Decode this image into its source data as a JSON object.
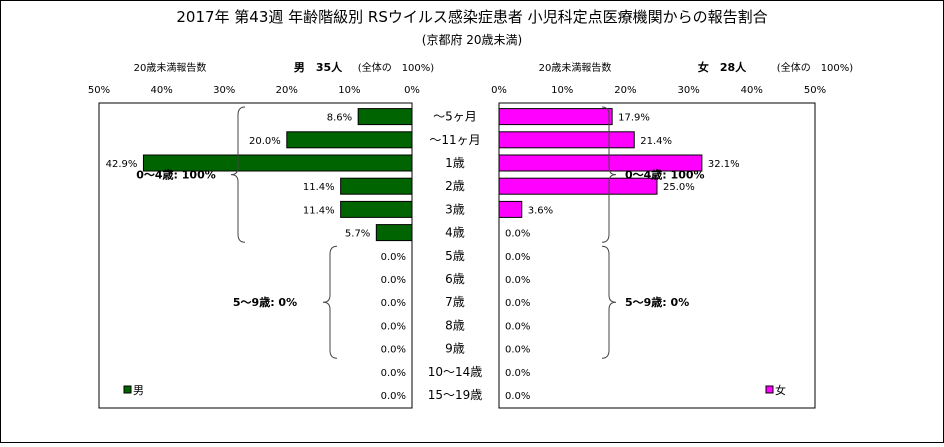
{
  "chart_data": {
    "type": "bar",
    "orientation": "horizontal",
    "layout": "population-pyramid",
    "title": "2017年 第43週 年齢階級別 RSウイルス感染症患者 小児科定点医療機関からの報告割合",
    "subtitle": "(京都府 20歳未満)",
    "categories": [
      "～5ヶ月",
      "～11ヶ月",
      "1歳",
      "2歳",
      "3歳",
      "4歳",
      "5歳",
      "6歳",
      "7歳",
      "8歳",
      "9歳",
      "10～14歳",
      "15～19歳"
    ],
    "xlim": [
      0,
      50
    ],
    "ticks": [
      "0%",
      "10%",
      "20%",
      "30%",
      "40%",
      "50%"
    ],
    "grid": false,
    "series": [
      {
        "name": "男",
        "color": "#006400",
        "side": "left",
        "values": [
          8.6,
          20.0,
          42.9,
          11.4,
          11.4,
          5.7,
          0,
          0,
          0,
          0,
          0,
          0,
          0
        ],
        "labels": [
          "8.6%",
          "20.0%",
          "42.9%",
          "11.4%",
          "11.4%",
          "5.7%",
          "0.0%",
          "0.0%",
          "0.0%",
          "0.0%",
          "0.0%",
          "0.0%",
          "0.0%"
        ],
        "header_count_label": "20歳未満報告数",
        "header_total": "男　35人",
        "header_note": "(全体の　100%)",
        "annotations": [
          "0～4歳: 100%",
          "5～9歳: 0%"
        ]
      },
      {
        "name": "女",
        "color": "#ff00ff",
        "side": "right",
        "values": [
          17.9,
          21.4,
          32.1,
          25.0,
          3.6,
          0,
          0,
          0,
          0,
          0,
          0,
          0,
          0
        ],
        "labels": [
          "17.9%",
          "21.4%",
          "32.1%",
          "25.0%",
          "3.6%",
          "0.0%",
          "0.0%",
          "0.0%",
          "0.0%",
          "0.0%",
          "0.0%",
          "0.0%",
          "0.0%"
        ],
        "header_count_label": "20歳未満報告数",
        "header_total": "女　28人",
        "header_note": "(全体の　100%)",
        "annotations": [
          "0～4歳: 100%",
          "5～9歳: 0%"
        ]
      }
    ],
    "legend": {
      "placement": "bottom-inside",
      "entries": [
        "男",
        "女"
      ]
    }
  }
}
